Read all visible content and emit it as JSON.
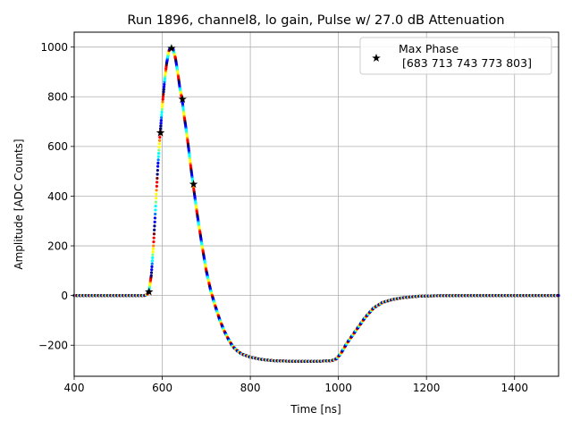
{
  "chart_data": {
    "type": "scatter",
    "title": "Run 1896, channel8, lo gain, Pulse w/ 27.0 dB Attenuation",
    "xlabel": "Time [ns]",
    "ylabel": "Amplitude [ADC Counts]",
    "xlim": [
      400,
      1500
    ],
    "ylim": [
      -325,
      1060
    ],
    "xticks": [
      400,
      600,
      800,
      1000,
      1200,
      1400
    ],
    "yticks": [
      -200,
      0,
      200,
      400,
      600,
      800,
      1000
    ],
    "grid": true,
    "legend": {
      "placement": "top-right",
      "title": "Max Phase",
      "entry": "[683 713 743 773 803]"
    },
    "colormap": [
      "#00007f",
      "#0000ff",
      "#007fff",
      "#00ffff",
      "#7fff7f",
      "#ffff00",
      "#ff7f00",
      "#ff0000",
      "#7f0000"
    ],
    "pulse_curve": {
      "sample_spacing_ns": 0.5,
      "samples_per_color_cycle": 14,
      "points": [
        [
          400,
          0
        ],
        [
          560,
          0
        ],
        [
          566,
          5
        ],
        [
          570,
          20
        ],
        [
          575,
          80
        ],
        [
          580,
          200
        ],
        [
          585,
          360
        ],
        [
          590,
          520
        ],
        [
          595,
          650
        ],
        [
          600,
          760
        ],
        [
          605,
          860
        ],
        [
          610,
          935
        ],
        [
          615,
          985
        ],
        [
          620,
          1000
        ],
        [
          625,
          990
        ],
        [
          630,
          955
        ],
        [
          635,
          900
        ],
        [
          640,
          835
        ],
        [
          645,
          790
        ],
        [
          650,
          720
        ],
        [
          655,
          660
        ],
        [
          660,
          590
        ],
        [
          665,
          515
        ],
        [
          670,
          448
        ],
        [
          680,
          320
        ],
        [
          690,
          205
        ],
        [
          700,
          100
        ],
        [
          710,
          20
        ],
        [
          720,
          -40
        ],
        [
          730,
          -95
        ],
        [
          740,
          -140
        ],
        [
          750,
          -175
        ],
        [
          760,
          -205
        ],
        [
          770,
          -222
        ],
        [
          780,
          -235
        ],
        [
          800,
          -248
        ],
        [
          825,
          -257
        ],
        [
          850,
          -262
        ],
        [
          900,
          -265
        ],
        [
          950,
          -265
        ],
        [
          985,
          -262
        ],
        [
          995,
          -255
        ],
        [
          1005,
          -235
        ],
        [
          1020,
          -190
        ],
        [
          1040,
          -140
        ],
        [
          1060,
          -90
        ],
        [
          1080,
          -50
        ],
        [
          1100,
          -28
        ],
        [
          1125,
          -15
        ],
        [
          1150,
          -8
        ],
        [
          1180,
          -3
        ],
        [
          1220,
          -1
        ],
        [
          1300,
          0
        ],
        [
          1500,
          0
        ]
      ]
    },
    "max_phase_markers": [
      {
        "x": 570,
        "y": 15
      },
      {
        "x": 596,
        "y": 655
      },
      {
        "x": 621,
        "y": 995
      },
      {
        "x": 646,
        "y": 790
      },
      {
        "x": 671,
        "y": 448
      }
    ]
  }
}
